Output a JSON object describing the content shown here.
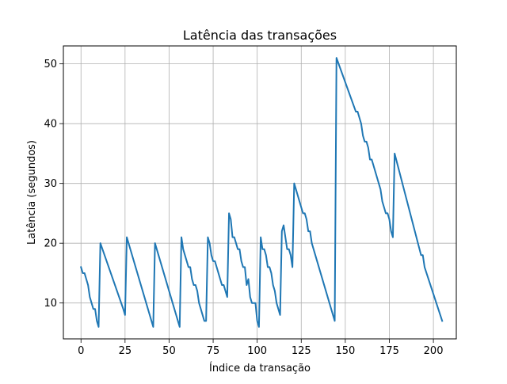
{
  "chart_data": {
    "type": "line",
    "title": "Latência das transações",
    "xlabel": "Índice da transação",
    "ylabel": "Latência (segundos)",
    "xlim": [
      -10,
      213
    ],
    "ylim": [
      4,
      53
    ],
    "xticks": [
      0,
      25,
      50,
      75,
      100,
      125,
      150,
      175,
      200
    ],
    "yticks": [
      10,
      20,
      30,
      40,
      50
    ],
    "grid": true,
    "legend": "none",
    "series": [
      {
        "color": "#1f77b4",
        "points": [
          [
            0,
            16
          ],
          [
            1,
            15
          ],
          [
            2,
            15
          ],
          [
            3,
            14
          ],
          [
            4,
            13
          ],
          [
            5,
            11
          ],
          [
            6,
            10
          ],
          [
            7,
            9
          ],
          [
            8,
            9
          ],
          [
            9,
            7
          ],
          [
            10,
            6
          ],
          [
            11,
            20
          ],
          [
            24,
            9
          ],
          [
            25,
            8
          ],
          [
            26,
            21
          ],
          [
            41,
            6
          ],
          [
            42,
            20
          ],
          [
            56,
            6
          ],
          [
            57,
            21
          ],
          [
            58,
            19
          ],
          [
            59,
            18
          ],
          [
            60,
            17
          ],
          [
            61,
            16
          ],
          [
            62,
            16
          ],
          [
            63,
            14
          ],
          [
            64,
            13
          ],
          [
            65,
            13
          ],
          [
            66,
            12
          ],
          [
            67,
            10
          ],
          [
            68,
            9
          ],
          [
            69,
            8
          ],
          [
            70,
            7
          ],
          [
            71,
            7
          ],
          [
            72,
            21
          ],
          [
            73,
            20
          ],
          [
            74,
            18
          ],
          [
            75,
            17
          ],
          [
            76,
            17
          ],
          [
            77,
            16
          ],
          [
            78,
            15
          ],
          [
            79,
            14
          ],
          [
            80,
            13
          ],
          [
            81,
            13
          ],
          [
            82,
            12
          ],
          [
            83,
            11
          ],
          [
            84,
            25
          ],
          [
            85,
            24
          ],
          [
            86,
            21
          ],
          [
            87,
            21
          ],
          [
            88,
            20
          ],
          [
            89,
            19
          ],
          [
            90,
            19
          ],
          [
            91,
            17
          ],
          [
            92,
            16
          ],
          [
            93,
            16
          ],
          [
            94,
            13
          ],
          [
            95,
            14
          ],
          [
            96,
            11
          ],
          [
            97,
            10
          ],
          [
            98,
            10
          ],
          [
            99,
            10
          ],
          [
            100,
            7
          ],
          [
            101,
            6
          ],
          [
            102,
            21
          ],
          [
            103,
            19
          ],
          [
            104,
            19
          ],
          [
            105,
            18
          ],
          [
            106,
            16
          ],
          [
            107,
            16
          ],
          [
            108,
            15
          ],
          [
            109,
            13
          ],
          [
            110,
            12
          ],
          [
            111,
            10
          ],
          [
            112,
            9
          ],
          [
            113,
            8
          ],
          [
            114,
            22
          ],
          [
            115,
            23
          ],
          [
            116,
            21
          ],
          [
            117,
            19
          ],
          [
            118,
            19
          ],
          [
            119,
            18
          ],
          [
            120,
            16
          ],
          [
            121,
            30
          ],
          [
            122,
            29
          ],
          [
            123,
            28
          ],
          [
            124,
            27
          ],
          [
            125,
            26
          ],
          [
            126,
            25
          ],
          [
            127,
            25
          ],
          [
            128,
            24
          ],
          [
            129,
            22
          ],
          [
            130,
            22
          ],
          [
            131,
            20
          ],
          [
            144,
            7
          ],
          [
            145,
            51
          ],
          [
            156,
            42
          ],
          [
            157,
            42
          ],
          [
            158,
            41
          ],
          [
            159,
            40
          ],
          [
            160,
            38
          ],
          [
            161,
            37
          ],
          [
            162,
            37
          ],
          [
            163,
            36
          ],
          [
            164,
            34
          ],
          [
            165,
            34
          ],
          [
            166,
            33
          ],
          [
            167,
            32
          ],
          [
            168,
            31
          ],
          [
            169,
            30
          ],
          [
            170,
            29
          ],
          [
            171,
            27
          ],
          [
            172,
            26
          ],
          [
            173,
            25
          ],
          [
            174,
            25
          ],
          [
            175,
            24
          ],
          [
            176,
            22
          ],
          [
            177,
            21
          ],
          [
            178,
            35
          ],
          [
            193,
            18
          ],
          [
            194,
            18
          ],
          [
            195,
            16
          ],
          [
            205,
            7
          ]
        ]
      }
    ]
  }
}
